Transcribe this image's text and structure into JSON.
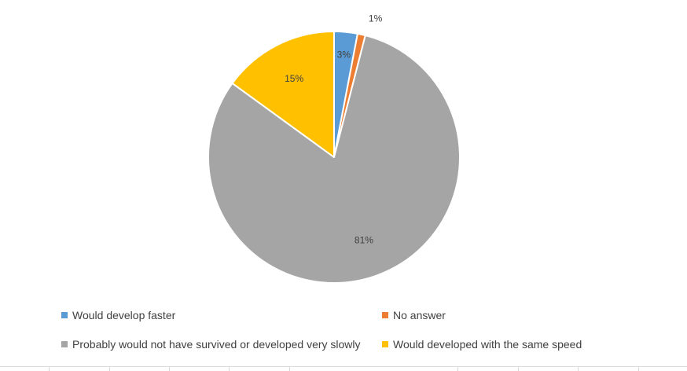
{
  "chart_data": {
    "type": "pie",
    "title": "",
    "categories": [
      "Would develop faster",
      "No answer",
      "Probably would not have survived or developed very slowly",
      "Would developed with the same speed"
    ],
    "values": [
      3,
      1,
      81,
      15
    ],
    "data_labels": [
      "3%",
      "1%",
      "81%",
      "15%"
    ],
    "colors": [
      "#5b9bd5",
      "#ed7d31",
      "#a5a5a5",
      "#ffc000"
    ],
    "legend_position": "bottom"
  }
}
